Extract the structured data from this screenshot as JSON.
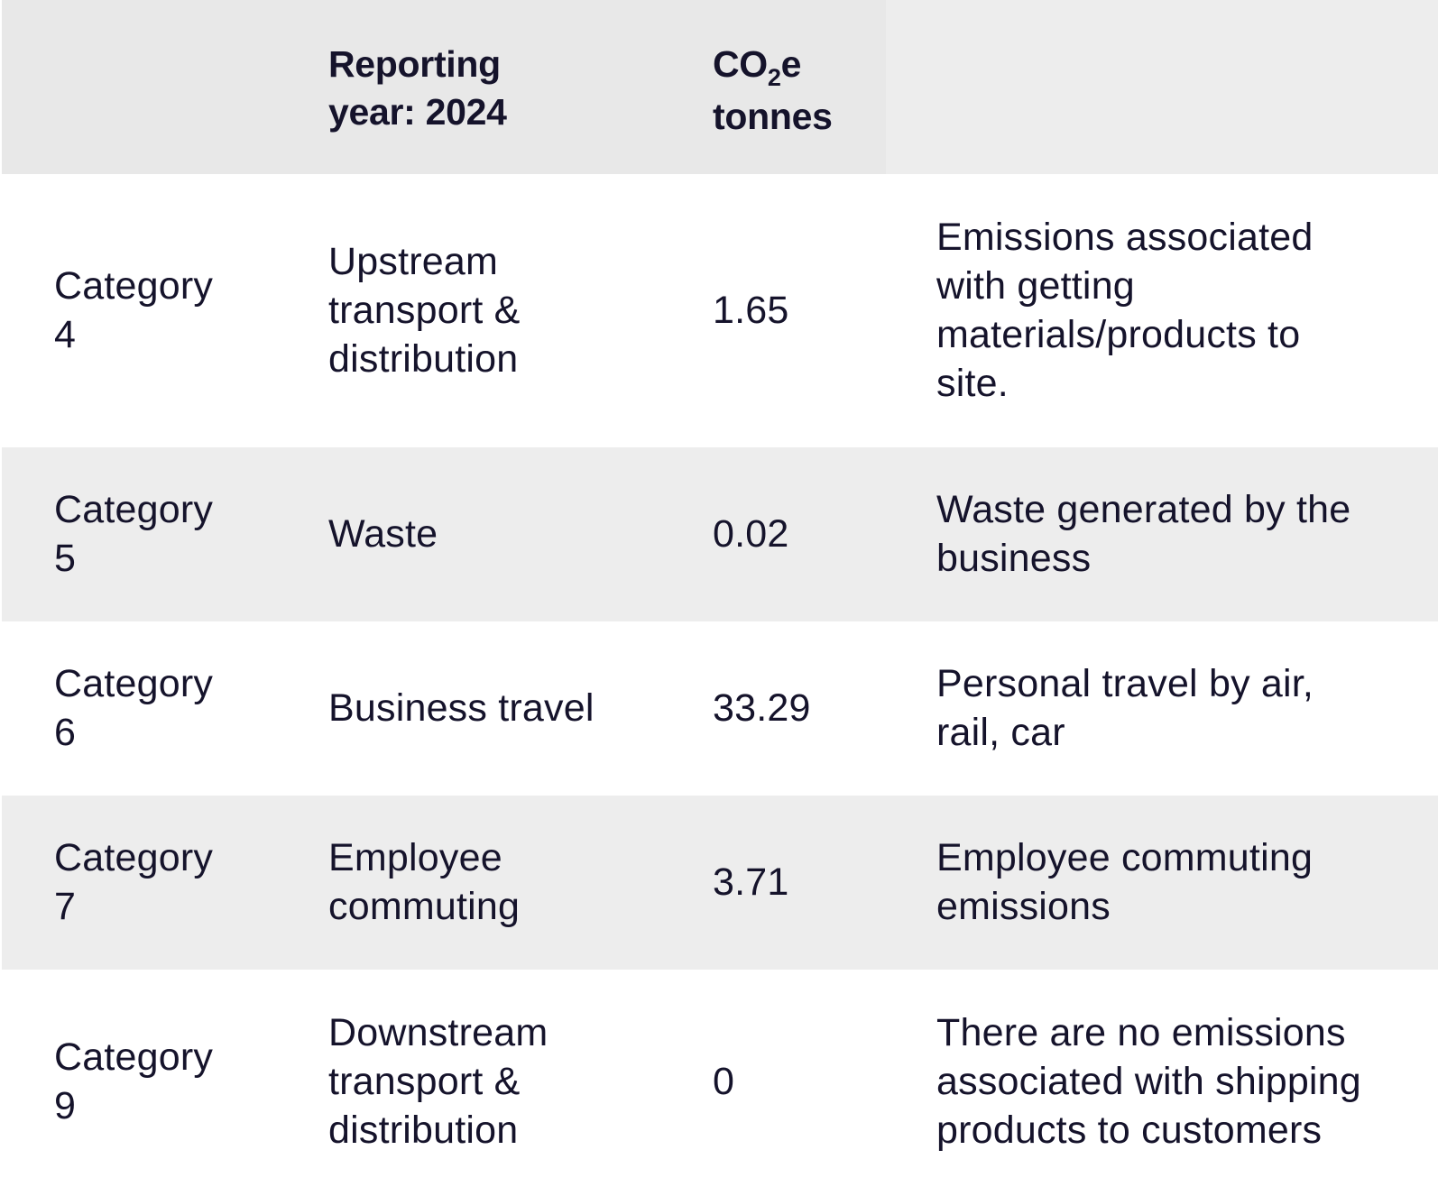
{
  "header": {
    "col_reporting": "Reporting\nyear: 2024",
    "col_co2_prefix": "CO",
    "col_co2_sub": "2",
    "col_co2_suffix": "e",
    "col_co2_line2": "tonnes"
  },
  "rows": [
    {
      "category": "Category\n4",
      "name": "Upstream\ntransport &\ndistribution",
      "value": "1.65",
      "description": "Emissions associated\nwith getting\nmaterials/products to\nsite."
    },
    {
      "category": "Category\n5",
      "name": "Waste",
      "value": "0.02",
      "description": "Waste generated by the\nbusiness"
    },
    {
      "category": "Category\n6",
      "name": "Business travel",
      "value": "33.29",
      "description": "Personal travel by air,\nrail, car"
    },
    {
      "category": "Category\n7",
      "name": "Employee\ncommuting",
      "value": "3.71",
      "description": "Employee commuting\nemissions"
    },
    {
      "category": "Category\n9",
      "name": "Downstream\ntransport &\ndistribution",
      "value": "0",
      "description": "There are no emissions\nassociated with shipping\nproducts to customers"
    }
  ]
}
